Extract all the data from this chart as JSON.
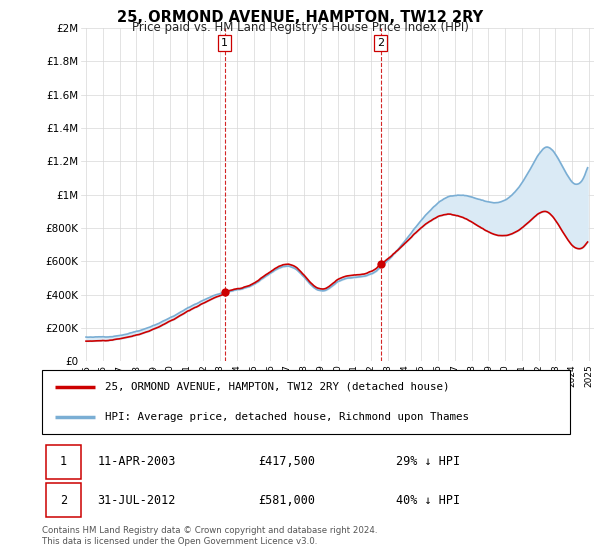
{
  "title": "25, ORMOND AVENUE, HAMPTON, TW12 2RY",
  "subtitle": "Price paid vs. HM Land Registry's House Price Index (HPI)",
  "hpi_label": "HPI: Average price, detached house, Richmond upon Thames",
  "price_label": "25, ORMOND AVENUE, HAMPTON, TW12 2RY (detached house)",
  "transaction1_date": "11-APR-2003",
  "transaction1_price": "£417,500",
  "transaction1_hpi": "29% ↓ HPI",
  "transaction2_date": "31-JUL-2012",
  "transaction2_price": "£581,000",
  "transaction2_hpi": "40% ↓ HPI",
  "footer": "Contains HM Land Registry data © Crown copyright and database right 2024.\nThis data is licensed under the Open Government Licence v3.0.",
  "price_color": "#cc0000",
  "hpi_color": "#7aaed4",
  "hpi_fill_color": "#daeaf5",
  "vline_color": "#cc0000",
  "ylim": [
    0,
    2000000
  ],
  "yticks": [
    0,
    200000,
    400000,
    600000,
    800000,
    1000000,
    1200000,
    1400000,
    1600000,
    1800000,
    2000000
  ],
  "ytick_labels": [
    "£0",
    "£200K",
    "£400K",
    "£600K",
    "£800K",
    "£1M",
    "£1.2M",
    "£1.4M",
    "£1.6M",
    "£1.8M",
    "£2M"
  ],
  "transaction1_x": 2003.27,
  "transaction2_x": 2012.58,
  "transaction1_y": 417500,
  "transaction2_y": 581000,
  "xmin": 1994.7,
  "xmax": 2025.3
}
